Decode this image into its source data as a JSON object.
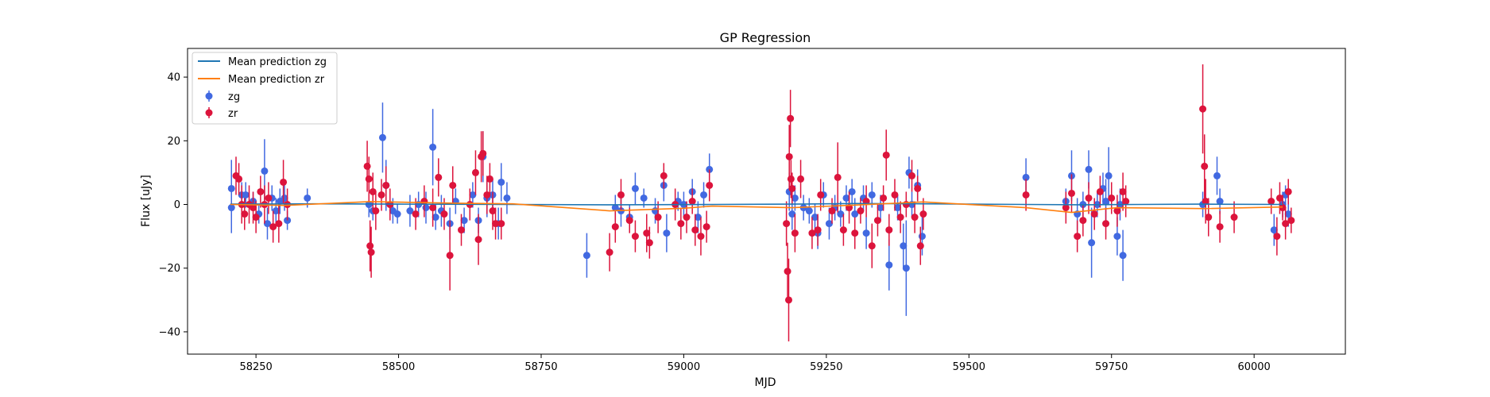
{
  "chart_data": {
    "type": "scatter",
    "title": "GP Regression",
    "xlabel": "MJD",
    "ylabel": "Flux [uJy]",
    "xlim": [
      58130,
      60160
    ],
    "ylim": [
      -47,
      49
    ],
    "xticks": [
      58250,
      58500,
      58750,
      59000,
      59250,
      59500,
      59750,
      60000
    ],
    "yticks": [
      -40,
      -20,
      0,
      20,
      40
    ],
    "grid": false,
    "legend_position": "upper-left",
    "colors": {
      "zg_line": "#1f77b4",
      "zr_line": "#ff7f0e",
      "zg_points": "#4169e1",
      "zr_points": "#dc143c"
    },
    "lines": [
      {
        "name": "Mean prediction zg",
        "color": "#1f77b4",
        "x": [
          58205,
          58350,
          58500,
          58700,
          58870,
          59050,
          59190,
          59300,
          59420,
          59600,
          59700,
          59800,
          59910,
          60050
        ],
        "y": [
          0.1,
          0.2,
          0.1,
          0.0,
          -0.1,
          0.0,
          0.1,
          0.3,
          0.2,
          0.0,
          -0.1,
          0.0,
          0.1,
          0.0
        ]
      },
      {
        "name": "Mean prediction zr",
        "color": "#ff7f0e",
        "x": [
          58205,
          58300,
          58450,
          58600,
          58700,
          58870,
          59000,
          59050,
          59190,
          59300,
          59420,
          59600,
          59680,
          59760,
          59910,
          60050
        ],
        "y": [
          0.0,
          -0.3,
          0.9,
          0.4,
          0.2,
          -2.0,
          -1.2,
          -0.5,
          -1.0,
          -0.2,
          0.8,
          -1.0,
          -2.5,
          -1.0,
          -1.3,
          -0.8
        ]
      }
    ],
    "series": [
      {
        "name": "zg",
        "color": "#4169e1",
        "points": [
          [
            58207,
            5,
            9
          ],
          [
            58207,
            -1,
            8
          ],
          [
            58225,
            3,
            4
          ],
          [
            58232,
            3,
            4
          ],
          [
            58245,
            1,
            3
          ],
          [
            58255,
            -3,
            3
          ],
          [
            58265,
            10.5,
            10
          ],
          [
            58270,
            -6,
            5
          ],
          [
            58278,
            2,
            4
          ],
          [
            58285,
            -2,
            4
          ],
          [
            58292,
            1,
            4
          ],
          [
            58300,
            2,
            4
          ],
          [
            58305,
            -5,
            3
          ],
          [
            58340,
            2,
            3
          ],
          [
            58448,
            0,
            4
          ],
          [
            58455,
            -2,
            3
          ],
          [
            58472,
            21,
            11
          ],
          [
            58478,
            6,
            8
          ],
          [
            58490,
            -2,
            4
          ],
          [
            58498,
            -3,
            3
          ],
          [
            58520,
            -2,
            5
          ],
          [
            58535,
            0,
            4
          ],
          [
            58548,
            -1,
            5
          ],
          [
            58560,
            18,
            12
          ],
          [
            58565,
            -4,
            4
          ],
          [
            58575,
            -2,
            5
          ],
          [
            58590,
            -6,
            5
          ],
          [
            58600,
            1,
            4
          ],
          [
            58615,
            -5,
            4
          ],
          [
            58630,
            3,
            4
          ],
          [
            58640,
            -5,
            4
          ],
          [
            58648,
            15,
            8
          ],
          [
            58655,
            2,
            6
          ],
          [
            58665,
            3,
            5
          ],
          [
            58675,
            -6,
            5
          ],
          [
            58680,
            7,
            6
          ],
          [
            58690,
            2,
            5
          ],
          [
            58830,
            -16,
            7
          ],
          [
            58880,
            -1,
            4
          ],
          [
            58890,
            -2,
            5
          ],
          [
            58905,
            -4,
            4
          ],
          [
            58915,
            5,
            5
          ],
          [
            58930,
            2,
            3
          ],
          [
            58950,
            -2,
            4
          ],
          [
            58965,
            6,
            5
          ],
          [
            58970,
            -9,
            6
          ],
          [
            58990,
            1,
            3
          ],
          [
            59000,
            0,
            4
          ],
          [
            59015,
            4,
            4
          ],
          [
            59025,
            -4,
            5
          ],
          [
            59035,
            3,
            4
          ],
          [
            59045,
            11,
            5
          ],
          [
            59185,
            4,
            6
          ],
          [
            59190,
            -3,
            5
          ],
          [
            59195,
            2,
            4
          ],
          [
            59210,
            -1,
            4
          ],
          [
            59220,
            -2,
            4
          ],
          [
            59230,
            -4,
            4
          ],
          [
            59235,
            -9,
            5
          ],
          [
            59245,
            3,
            4
          ],
          [
            59255,
            -6,
            5
          ],
          [
            59265,
            -1,
            4
          ],
          [
            59275,
            -3,
            4
          ],
          [
            59285,
            2,
            4
          ],
          [
            59295,
            4,
            4
          ],
          [
            59300,
            -3,
            5
          ],
          [
            59315,
            2,
            4
          ],
          [
            59320,
            -9,
            5
          ],
          [
            59330,
            3,
            4
          ],
          [
            59345,
            -1,
            4
          ],
          [
            59360,
            -19,
            8
          ],
          [
            59375,
            -1,
            4
          ],
          [
            59385,
            -13,
            7
          ],
          [
            59390,
            -20,
            15
          ],
          [
            59395,
            10,
            5
          ],
          [
            59400,
            0,
            4
          ],
          [
            59410,
            6,
            5
          ],
          [
            59418,
            -10,
            6
          ],
          [
            59600,
            8.5,
            6
          ],
          [
            59670,
            1,
            4
          ],
          [
            59680,
            9,
            8
          ],
          [
            59690,
            -3,
            5
          ],
          [
            59700,
            0,
            4
          ],
          [
            59710,
            11,
            6
          ],
          [
            59715,
            -12,
            11
          ],
          [
            59725,
            0,
            4
          ],
          [
            59735,
            5,
            5
          ],
          [
            59740,
            1,
            7
          ],
          [
            59745,
            9,
            9
          ],
          [
            59760,
            -10,
            6
          ],
          [
            59765,
            0,
            5
          ],
          [
            59770,
            -16,
            8
          ],
          [
            59910,
            0,
            4
          ],
          [
            59935,
            9,
            6
          ],
          [
            59940,
            1,
            4
          ],
          [
            60035,
            -8,
            5
          ],
          [
            60050,
            0,
            4
          ],
          [
            60055,
            3,
            3
          ],
          [
            60060,
            -3,
            4
          ]
        ]
      },
      {
        "name": "zr",
        "color": "#dc143c",
        "points": [
          [
            58215,
            9,
            6
          ],
          [
            58220,
            8,
            5
          ],
          [
            58225,
            0,
            6
          ],
          [
            58230,
            -3,
            5
          ],
          [
            58238,
            0,
            6
          ],
          [
            58245,
            -1,
            5
          ],
          [
            58250,
            -4,
            5
          ],
          [
            58258,
            4,
            5
          ],
          [
            58265,
            0,
            6
          ],
          [
            58272,
            2,
            5
          ],
          [
            58280,
            -7,
            5
          ],
          [
            58290,
            -6,
            6
          ],
          [
            58298,
            7,
            7
          ],
          [
            58305,
            0,
            5
          ],
          [
            58445,
            12,
            8
          ],
          [
            58448,
            8,
            7
          ],
          [
            58450,
            -13,
            8
          ],
          [
            58452,
            -15,
            8
          ],
          [
            58455,
            4,
            6
          ],
          [
            58460,
            -2,
            6
          ],
          [
            58470,
            3,
            5
          ],
          [
            58478,
            6,
            6
          ],
          [
            58485,
            0,
            5
          ],
          [
            58530,
            -3,
            5
          ],
          [
            58545,
            1,
            5
          ],
          [
            58560,
            -1,
            6
          ],
          [
            58570,
            8.5,
            6
          ],
          [
            58580,
            -3,
            5
          ],
          [
            58590,
            -16,
            11
          ],
          [
            58595,
            6,
            6
          ],
          [
            58610,
            -8,
            5
          ],
          [
            58625,
            0,
            5
          ],
          [
            58635,
            10,
            7
          ],
          [
            58640,
            -11,
            8
          ],
          [
            58645,
            15,
            8
          ],
          [
            58648,
            16,
            7
          ],
          [
            58655,
            3,
            6
          ],
          [
            58660,
            8,
            5
          ],
          [
            58665,
            -2,
            6
          ],
          [
            58670,
            -6,
            5
          ],
          [
            58680,
            -6,
            5
          ],
          [
            58870,
            -15,
            6
          ],
          [
            58880,
            -7,
            5
          ],
          [
            58890,
            3,
            5
          ],
          [
            58905,
            -5,
            4
          ],
          [
            58915,
            -10,
            5
          ],
          [
            58935,
            -9,
            6
          ],
          [
            58940,
            -12,
            5
          ],
          [
            58955,
            -4,
            5
          ],
          [
            58965,
            9,
            4
          ],
          [
            58985,
            0,
            5
          ],
          [
            58995,
            -6,
            5
          ],
          [
            59005,
            -4,
            5
          ],
          [
            59015,
            1,
            4
          ],
          [
            59020,
            -8,
            5
          ],
          [
            59030,
            -10,
            6
          ],
          [
            59040,
            -7,
            5
          ],
          [
            59045,
            6,
            5
          ],
          [
            59180,
            -6,
            7
          ],
          [
            59182,
            -21,
            9
          ],
          [
            59184,
            -30,
            13
          ],
          [
            59185,
            15,
            10
          ],
          [
            59187,
            27,
            9
          ],
          [
            59188,
            8,
            6
          ],
          [
            59190,
            5,
            5
          ],
          [
            59195,
            -9,
            6
          ],
          [
            59205,
            8,
            6
          ],
          [
            59225,
            -9,
            5
          ],
          [
            59235,
            -8,
            5
          ],
          [
            59240,
            3,
            5
          ],
          [
            59260,
            -2,
            4
          ],
          [
            59270,
            8.5,
            11
          ],
          [
            59280,
            -8,
            5
          ],
          [
            59290,
            -1,
            5
          ],
          [
            59300,
            -9,
            5
          ],
          [
            59310,
            -2,
            4
          ],
          [
            59320,
            1,
            5
          ],
          [
            59330,
            -13,
            7
          ],
          [
            59340,
            -5,
            5
          ],
          [
            59350,
            2,
            4
          ],
          [
            59355,
            15.5,
            8
          ],
          [
            59360,
            -8,
            5
          ],
          [
            59370,
            3,
            5
          ],
          [
            59380,
            -4,
            5
          ],
          [
            59390,
            0,
            4
          ],
          [
            59400,
            9,
            5
          ],
          [
            59405,
            -4,
            5
          ],
          [
            59410,
            5,
            4
          ],
          [
            59415,
            -13,
            6
          ],
          [
            59420,
            -3,
            5
          ],
          [
            59600,
            3,
            5
          ],
          [
            59670,
            -1,
            5
          ],
          [
            59680,
            3.5,
            6
          ],
          [
            59690,
            -10,
            5
          ],
          [
            59700,
            -5,
            5
          ],
          [
            59710,
            2,
            5
          ],
          [
            59720,
            -3,
            5
          ],
          [
            59730,
            4,
            5
          ],
          [
            59740,
            -6,
            5
          ],
          [
            59750,
            2,
            5
          ],
          [
            59760,
            -2,
            5
          ],
          [
            59770,
            4,
            6
          ],
          [
            59775,
            1,
            5
          ],
          [
            59910,
            30,
            14
          ],
          [
            59913,
            12,
            10
          ],
          [
            59915,
            1,
            7
          ],
          [
            59920,
            -4,
            6
          ],
          [
            59940,
            -7,
            5
          ],
          [
            59965,
            -4,
            5
          ],
          [
            60030,
            1,
            4
          ],
          [
            60040,
            -10,
            6
          ],
          [
            60045,
            2,
            5
          ],
          [
            60050,
            -1,
            4
          ],
          [
            60055,
            -6,
            5
          ],
          [
            60060,
            4,
            4
          ],
          [
            60065,
            -5,
            4
          ]
        ]
      }
    ],
    "legend": [
      "Mean prediction zg",
      "Mean prediction zr",
      "zg",
      "zr"
    ]
  }
}
